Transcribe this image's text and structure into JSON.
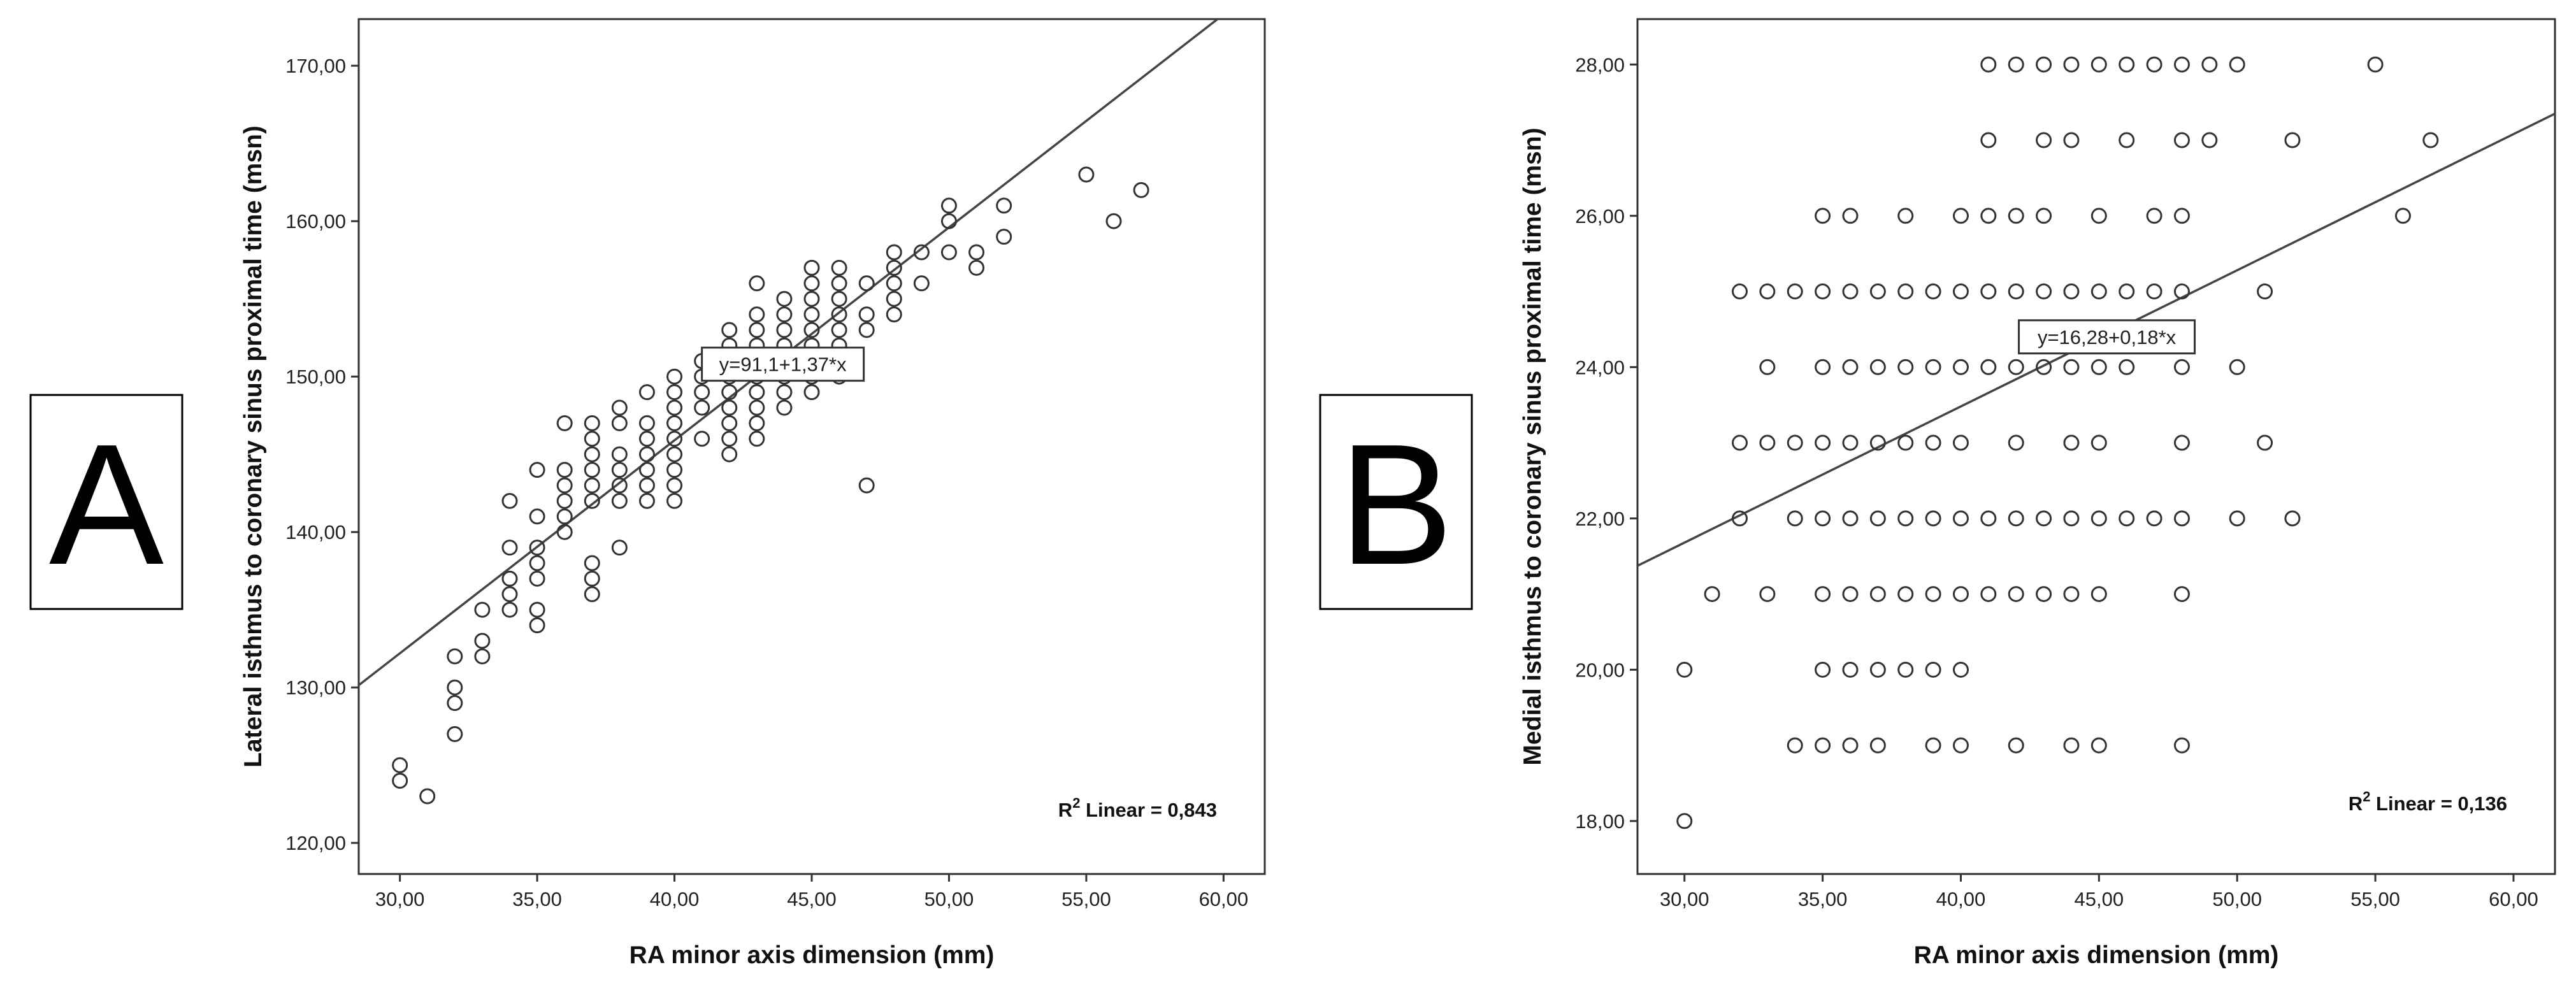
{
  "chart_data": [
    {
      "panel": "A",
      "type": "scatter",
      "xlabel": "RA minor axis dimension (mm)",
      "ylabel": "Lateral isthmus to coronary sinus proximal time (msn)",
      "xlim": [
        28.5,
        61.5
      ],
      "ylim": [
        118,
        173
      ],
      "xticks": [
        "30,00",
        "35,00",
        "40,00",
        "45,00",
        "50,00",
        "55,00",
        "60,00"
      ],
      "yticks": [
        "120,00",
        "130,00",
        "140,00",
        "150,00",
        "160,00",
        "170,00"
      ],
      "fit": {
        "intercept": 91.1,
        "slope": 1.37,
        "label": "y=91,1+1,37*x"
      },
      "r2_prefix": "R",
      "r2_sup": "2",
      "r2_suffix": " Linear = 0,843",
      "points": [
        [
          30,
          124
        ],
        [
          30,
          125
        ],
        [
          31,
          123
        ],
        [
          32,
          127
        ],
        [
          32,
          129
        ],
        [
          32,
          130
        ],
        [
          32,
          132
        ],
        [
          33,
          132
        ],
        [
          33,
          133
        ],
        [
          33,
          135
        ],
        [
          34,
          135
        ],
        [
          34,
          136
        ],
        [
          34,
          137
        ],
        [
          34,
          139
        ],
        [
          34,
          142
        ],
        [
          35,
          134
        ],
        [
          35,
          135
        ],
        [
          35,
          137
        ],
        [
          35,
          138
        ],
        [
          35,
          139
        ],
        [
          35,
          141
        ],
        [
          35,
          144
        ],
        [
          36,
          140
        ],
        [
          36,
          141
        ],
        [
          36,
          142
        ],
        [
          36,
          143
        ],
        [
          36,
          144
        ],
        [
          36,
          147
        ],
        [
          37,
          136
        ],
        [
          37,
          137
        ],
        [
          37,
          138
        ],
        [
          37,
          142
        ],
        [
          37,
          143
        ],
        [
          37,
          144
        ],
        [
          37,
          145
        ],
        [
          37,
          146
        ],
        [
          37,
          147
        ],
        [
          38,
          139
        ],
        [
          38,
          142
        ],
        [
          38,
          143
        ],
        [
          38,
          144
        ],
        [
          38,
          145
        ],
        [
          38,
          147
        ],
        [
          38,
          148
        ],
        [
          39,
          142
        ],
        [
          39,
          143
        ],
        [
          39,
          144
        ],
        [
          39,
          145
        ],
        [
          39,
          146
        ],
        [
          39,
          147
        ],
        [
          39,
          149
        ],
        [
          40,
          142
        ],
        [
          40,
          143
        ],
        [
          40,
          144
        ],
        [
          40,
          145
        ],
        [
          40,
          146
        ],
        [
          40,
          147
        ],
        [
          40,
          148
        ],
        [
          40,
          149
        ],
        [
          40,
          150
        ],
        [
          41,
          146
        ],
        [
          41,
          148
        ],
        [
          41,
          149
        ],
        [
          41,
          150
        ],
        [
          41,
          151
        ],
        [
          42,
          145
        ],
        [
          42,
          146
        ],
        [
          42,
          147
        ],
        [
          42,
          148
        ],
        [
          42,
          149
        ],
        [
          42,
          150
        ],
        [
          42,
          151
        ],
        [
          42,
          152
        ],
        [
          42,
          153
        ],
        [
          43,
          146
        ],
        [
          43,
          147
        ],
        [
          43,
          148
        ],
        [
          43,
          149
        ],
        [
          43,
          150
        ],
        [
          43,
          151
        ],
        [
          43,
          152
        ],
        [
          43,
          153
        ],
        [
          43,
          154
        ],
        [
          43,
          156
        ],
        [
          44,
          148
        ],
        [
          44,
          149
        ],
        [
          44,
          150
        ],
        [
          44,
          151
        ],
        [
          44,
          152
        ],
        [
          44,
          153
        ],
        [
          44,
          154
        ],
        [
          44,
          155
        ],
        [
          45,
          149
        ],
        [
          45,
          150
        ],
        [
          45,
          151
        ],
        [
          45,
          152
        ],
        [
          45,
          153
        ],
        [
          45,
          154
        ],
        [
          45,
          155
        ],
        [
          45,
          156
        ],
        [
          45,
          157
        ],
        [
          46,
          150
        ],
        [
          46,
          151
        ],
        [
          46,
          152
        ],
        [
          46,
          153
        ],
        [
          46,
          154
        ],
        [
          46,
          155
        ],
        [
          46,
          156
        ],
        [
          46,
          157
        ],
        [
          47,
          143
        ],
        [
          47,
          153
        ],
        [
          47,
          154
        ],
        [
          47,
          156
        ],
        [
          48,
          154
        ],
        [
          48,
          155
        ],
        [
          48,
          156
        ],
        [
          48,
          157
        ],
        [
          48,
          158
        ],
        [
          49,
          156
        ],
        [
          49,
          158
        ],
        [
          50,
          158
        ],
        [
          50,
          160
        ],
        [
          50,
          161
        ],
        [
          51,
          157
        ],
        [
          51,
          158
        ],
        [
          52,
          159
        ],
        [
          52,
          161
        ],
        [
          55,
          163
        ],
        [
          56,
          160
        ],
        [
          57,
          162
        ]
      ]
    },
    {
      "panel": "B",
      "type": "scatter",
      "xlabel": "RA minor axis dimension (mm)",
      "ylabel": "Medial isthmus to coronary sinus proximal time (msn)",
      "xlim": [
        28.3,
        61.5
      ],
      "ylim": [
        17.3,
        28.6
      ],
      "xticks": [
        "30,00",
        "35,00",
        "40,00",
        "45,00",
        "50,00",
        "55,00",
        "60,00"
      ],
      "yticks": [
        "18,00",
        "20,00",
        "22,00",
        "24,00",
        "26,00",
        "28,00"
      ],
      "fit": {
        "intercept": 16.28,
        "slope": 0.18,
        "label": "y=16,28+0,18*x"
      },
      "r2_prefix": "R",
      "r2_sup": "2",
      "r2_suffix": " Linear = 0,136",
      "points": [
        [
          30,
          18
        ],
        [
          30,
          20
        ],
        [
          31,
          21
        ],
        [
          32,
          22
        ],
        [
          32,
          23
        ],
        [
          32,
          25
        ],
        [
          33,
          21
        ],
        [
          33,
          23
        ],
        [
          33,
          24
        ],
        [
          33,
          25
        ],
        [
          34,
          19
        ],
        [
          34,
          22
        ],
        [
          34,
          23
        ],
        [
          34,
          25
        ],
        [
          35,
          19
        ],
        [
          35,
          20
        ],
        [
          35,
          21
        ],
        [
          35,
          22
        ],
        [
          35,
          23
        ],
        [
          35,
          24
        ],
        [
          35,
          25
        ],
        [
          35,
          26
        ],
        [
          36,
          19
        ],
        [
          36,
          20
        ],
        [
          36,
          21
        ],
        [
          36,
          22
        ],
        [
          36,
          23
        ],
        [
          36,
          24
        ],
        [
          36,
          25
        ],
        [
          36,
          26
        ],
        [
          37,
          19
        ],
        [
          37,
          20
        ],
        [
          37,
          21
        ],
        [
          37,
          22
        ],
        [
          37,
          23
        ],
        [
          37,
          24
        ],
        [
          37,
          25
        ],
        [
          38,
          20
        ],
        [
          38,
          21
        ],
        [
          38,
          22
        ],
        [
          38,
          23
        ],
        [
          38,
          24
        ],
        [
          38,
          25
        ],
        [
          38,
          26
        ],
        [
          39,
          19
        ],
        [
          39,
          20
        ],
        [
          39,
          21
        ],
        [
          39,
          22
        ],
        [
          39,
          23
        ],
        [
          39,
          24
        ],
        [
          39,
          25
        ],
        [
          40,
          19
        ],
        [
          40,
          20
        ],
        [
          40,
          21
        ],
        [
          40,
          22
        ],
        [
          40,
          23
        ],
        [
          40,
          24
        ],
        [
          40,
          25
        ],
        [
          40,
          26
        ],
        [
          41,
          21
        ],
        [
          41,
          22
        ],
        [
          41,
          24
        ],
        [
          41,
          25
        ],
        [
          41,
          26
        ],
        [
          41,
          27
        ],
        [
          41,
          28
        ],
        [
          42,
          19
        ],
        [
          42,
          21
        ],
        [
          42,
          22
        ],
        [
          42,
          23
        ],
        [
          42,
          24
        ],
        [
          42,
          25
        ],
        [
          42,
          26
        ],
        [
          42,
          28
        ],
        [
          43,
          21
        ],
        [
          43,
          22
        ],
        [
          43,
          24
        ],
        [
          43,
          25
        ],
        [
          43,
          26
        ],
        [
          43,
          27
        ],
        [
          43,
          28
        ],
        [
          44,
          19
        ],
        [
          44,
          21
        ],
        [
          44,
          22
        ],
        [
          44,
          23
        ],
        [
          44,
          24
        ],
        [
          44,
          25
        ],
        [
          44,
          27
        ],
        [
          44,
          28
        ],
        [
          45,
          19
        ],
        [
          45,
          21
        ],
        [
          45,
          22
        ],
        [
          45,
          23
        ],
        [
          45,
          24
        ],
        [
          45,
          25
        ],
        [
          45,
          26
        ],
        [
          45,
          28
        ],
        [
          46,
          22
        ],
        [
          46,
          24
        ],
        [
          46,
          25
        ],
        [
          46,
          27
        ],
        [
          46,
          28
        ],
        [
          47,
          22
        ],
        [
          47,
          25
        ],
        [
          47,
          26
        ],
        [
          47,
          28
        ],
        [
          48,
          19
        ],
        [
          48,
          21
        ],
        [
          48,
          22
        ],
        [
          48,
          23
        ],
        [
          48,
          24
        ],
        [
          48,
          25
        ],
        [
          48,
          26
        ],
        [
          48,
          27
        ],
        [
          48,
          28
        ],
        [
          49,
          27
        ],
        [
          49,
          28
        ],
        [
          50,
          22
        ],
        [
          50,
          24
        ],
        [
          50,
          28
        ],
        [
          51,
          23
        ],
        [
          51,
          25
        ],
        [
          52,
          22
        ],
        [
          52,
          27
        ],
        [
          55,
          28
        ],
        [
          56,
          26
        ],
        [
          57,
          27
        ]
      ]
    }
  ],
  "panels": {
    "a_letter": "A",
    "b_letter": "B"
  }
}
